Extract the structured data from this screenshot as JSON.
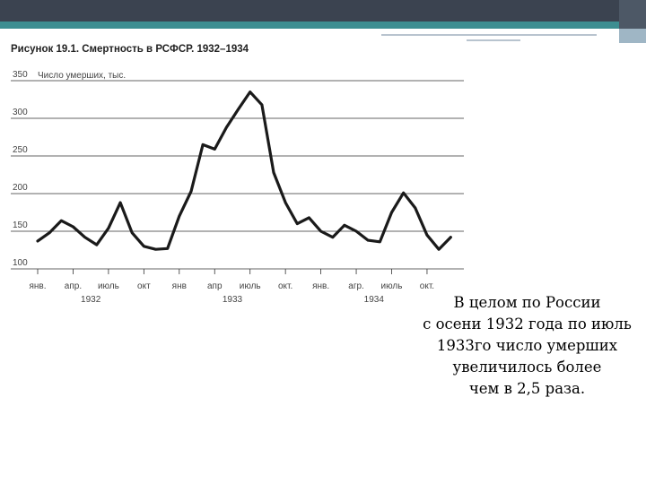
{
  "slide": {
    "caption_lines": [
      "В целом по России",
      "с осени 1932 года по июль",
      "1933го число умерших",
      "увеличилось более",
      "чем в 2,5 раза."
    ]
  },
  "chart_data": {
    "type": "line",
    "title": "Рисунок 19.1. Смертность в РСФСР. 1932–1934",
    "ylabel": "Число умерших, тыс.",
    "ylim": [
      100,
      350
    ],
    "yticks": [
      100,
      150,
      200,
      250,
      300,
      350
    ],
    "grid": true,
    "months": [
      1,
      2,
      3,
      4,
      5,
      6,
      7,
      8,
      9,
      10,
      11,
      12,
      13,
      14,
      15,
      16,
      17,
      18,
      19,
      20,
      21,
      22,
      23,
      24,
      25,
      26,
      27,
      28,
      29,
      30,
      31,
      32,
      33,
      34,
      35,
      36
    ],
    "values": [
      137,
      148,
      164,
      156,
      142,
      132,
      154,
      188,
      148,
      130,
      126,
      127,
      170,
      203,
      265,
      259,
      288,
      312,
      335,
      318,
      228,
      188,
      160,
      168,
      150,
      142,
      158,
      150,
      138,
      136,
      175,
      201,
      181,
      145,
      126,
      142
    ],
    "x_tick_labels": [
      {
        "month": 1,
        "label": "янв."
      },
      {
        "month": 4,
        "label": "апр."
      },
      {
        "month": 7,
        "label": "июль"
      },
      {
        "month": 10,
        "label": "окт"
      },
      {
        "month": 13,
        "label": "янв"
      },
      {
        "month": 16,
        "label": "апр"
      },
      {
        "month": 19,
        "label": "июль"
      },
      {
        "month": 22,
        "label": "окт."
      },
      {
        "month": 25,
        "label": "янв."
      },
      {
        "month": 28,
        "label": "агр."
      },
      {
        "month": 31,
        "label": "июль"
      },
      {
        "month": 34,
        "label": "окт."
      }
    ],
    "year_labels": [
      {
        "month": 5.5,
        "label": "1932"
      },
      {
        "month": 17.5,
        "label": "1933"
      },
      {
        "month": 29.5,
        "label": "1934"
      }
    ]
  }
}
